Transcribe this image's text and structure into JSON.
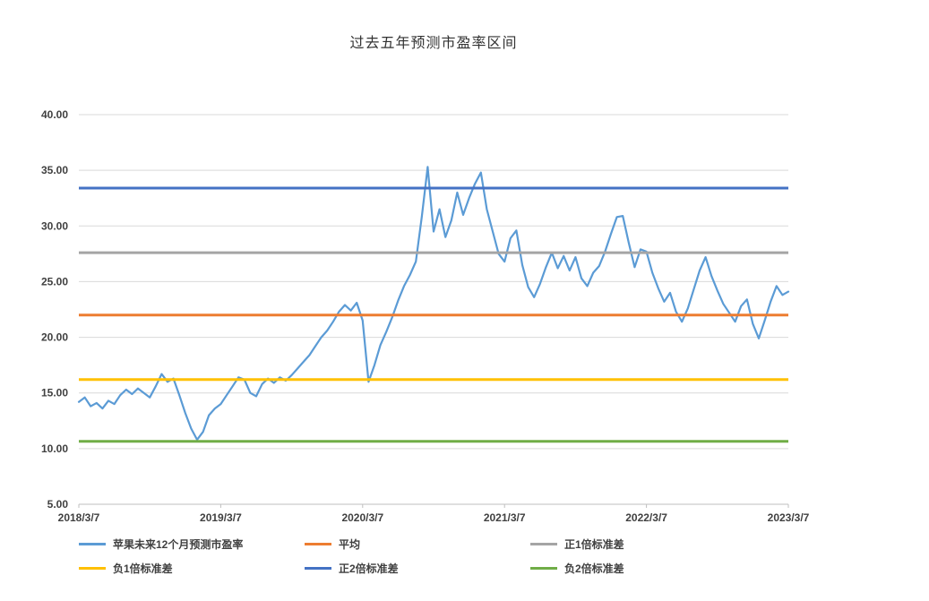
{
  "chart_data": {
    "type": "line",
    "title": "过去五年预测市盈率区间",
    "x_tick_labels": [
      "2018/3/7",
      "2019/3/7",
      "2020/3/7",
      "2021/3/7",
      "2022/3/7",
      "2023/3/7"
    ],
    "y_ticks": [
      5,
      10,
      15,
      20,
      25,
      30,
      35,
      40
    ],
    "y_tick_labels": [
      "5.00",
      "10.00",
      "15.00",
      "20.00",
      "25.00",
      "30.00",
      "35.00",
      "40.00"
    ],
    "ylim": [
      5,
      40
    ],
    "grid": true,
    "legend_position": "bottom",
    "gridline_color": "#D9D9D9",
    "axis_color": "#BFBFBF",
    "series": [
      {
        "key": "main",
        "name": "苹果未来12个月预测市盈率",
        "type": "line",
        "color": "#5B9BD5",
        "x_range_months": [
          0,
          60
        ],
        "values": [
          14.2,
          14.6,
          13.8,
          14.1,
          13.6,
          14.3,
          14.0,
          14.8,
          15.3,
          14.9,
          15.4,
          15.0,
          14.6,
          15.6,
          16.7,
          16.0,
          16.3,
          14.8,
          13.2,
          11.8,
          10.8,
          11.5,
          13.0,
          13.6,
          14.0,
          14.8,
          15.6,
          16.4,
          16.2,
          15.0,
          14.7,
          15.8,
          16.3,
          15.9,
          16.4,
          16.1,
          16.6,
          17.2,
          17.8,
          18.4,
          19.2,
          20.0,
          20.6,
          21.4,
          22.3,
          22.9,
          22.4,
          23.1,
          21.5,
          16.0,
          17.5,
          19.3,
          20.5,
          21.8,
          23.3,
          24.6,
          25.6,
          26.8,
          30.8,
          35.3,
          29.5,
          31.5,
          29.0,
          30.5,
          33.0,
          31.0,
          32.5,
          33.8,
          34.8,
          31.5,
          29.5,
          27.5,
          26.8,
          28.9,
          29.6,
          26.5,
          24.5,
          23.6,
          24.8,
          26.3,
          27.6,
          26.2,
          27.3,
          26.0,
          27.2,
          25.3,
          24.6,
          25.8,
          26.4,
          27.7,
          29.3,
          30.8,
          30.9,
          28.5,
          26.3,
          27.9,
          27.7,
          25.8,
          24.4,
          23.2,
          24.0,
          22.3,
          21.4,
          22.6,
          24.3,
          26.0,
          27.2,
          25.5,
          24.2,
          23.0,
          22.2,
          21.4,
          22.8,
          23.4,
          21.2,
          19.9,
          21.5,
          23.2,
          24.6,
          23.8,
          24.1
        ]
      },
      {
        "key": "average",
        "name": "平均",
        "type": "hline",
        "color": "#ED7D31",
        "value": 22.0
      },
      {
        "key": "plus1sd",
        "name": "正1倍标准差",
        "type": "hline",
        "color": "#A5A5A5",
        "value": 27.6
      },
      {
        "key": "minus1sd",
        "name": "负1倍标准差",
        "type": "hline",
        "color": "#FFC000",
        "value": 16.2
      },
      {
        "key": "plus2sd",
        "name": "正2倍标准差",
        "type": "hline",
        "color": "#4472C4",
        "value": 33.4
      },
      {
        "key": "minus2sd",
        "name": "负2倍标准差",
        "type": "hline",
        "color": "#70AD47",
        "value": 10.65
      }
    ],
    "legend_rows": [
      [
        "苹果未来12个月预测市盈率",
        "平均",
        "正1倍标准差"
      ],
      [
        "负1倍标准差",
        "正2倍标准差",
        "负2倍标准差"
      ]
    ]
  }
}
